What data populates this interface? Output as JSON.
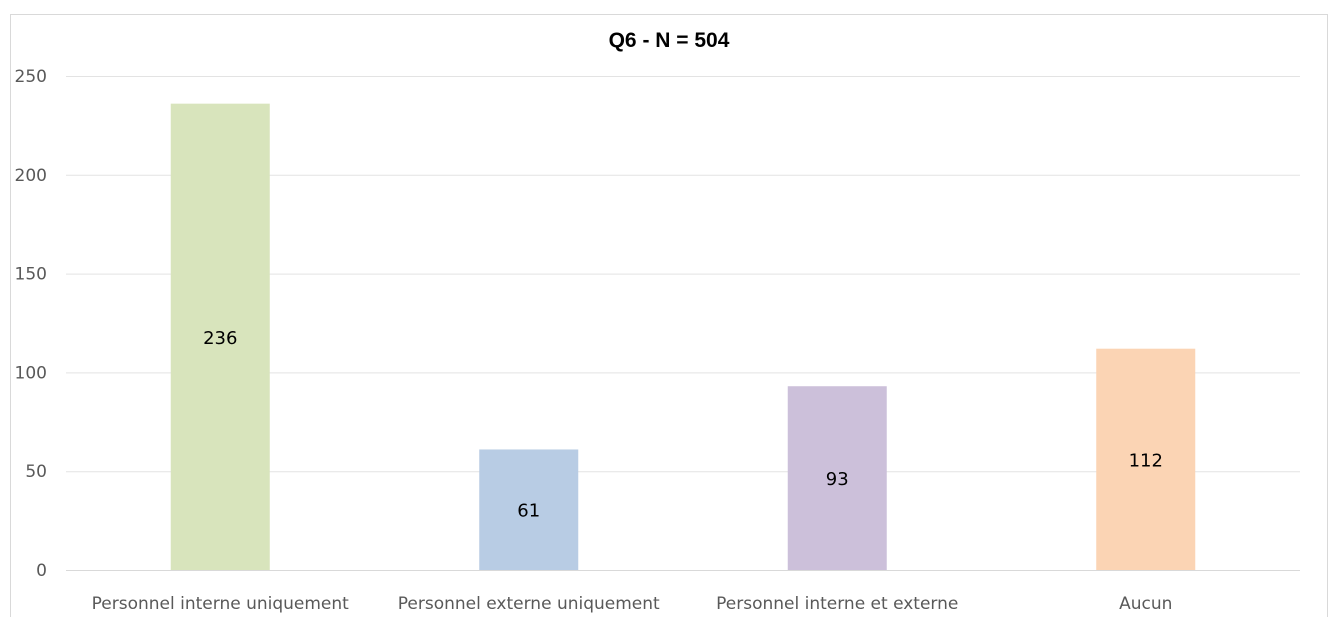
{
  "chart_data": {
    "type": "bar",
    "title": "Q6 - N = 504",
    "xlabel": "",
    "ylabel": "",
    "categories": [
      "Personnel interne uniquement",
      "Personnel externe uniquement",
      "Personnel interne et externe",
      "Aucun"
    ],
    "values": [
      236,
      61,
      93,
      112
    ],
    "data_labels": [
      "236",
      "61",
      "93",
      "112"
    ],
    "colors": [
      "#d8e4bc",
      "#b8cce4",
      "#ccc0da",
      "#fbd4b4"
    ],
    "ylim": [
      0,
      250
    ],
    "yticks": [
      "0",
      "50",
      "100",
      "150",
      "200",
      "250"
    ],
    "grid": true,
    "legend": "none"
  }
}
